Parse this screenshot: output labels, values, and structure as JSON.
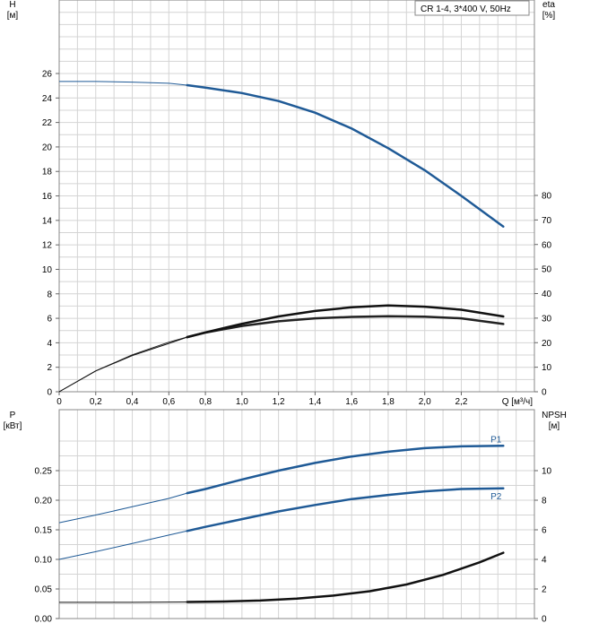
{
  "chart_data": [
    {
      "type": "line",
      "legend_text": "CR 1-4, 3*400 V, 50Hz",
      "left_axis_label": [
        "H",
        "[м]"
      ],
      "right_axis_label": [
        "eta",
        "[%]"
      ],
      "x_axis_label": "Q [м³/ч]",
      "xlim": [
        0,
        2.6
      ],
      "ylim_left": [
        0,
        26
      ],
      "ylim_right": [
        0,
        80
      ],
      "x_ticks": [
        "0",
        "0,2",
        "0,4",
        "0,6",
        "0,8",
        "1,0",
        "1,2",
        "1,4",
        "1,6",
        "1,8",
        "2,0",
        "2,2"
      ],
      "x_tick_values": [
        0,
        0.2,
        0.4,
        0.6,
        0.8,
        1.0,
        1.2,
        1.4,
        1.6,
        1.8,
        2.0,
        2.2
      ],
      "y_left_ticks": [
        "0",
        "2",
        "4",
        "6",
        "8",
        "10",
        "12",
        "14",
        "16",
        "18",
        "20",
        "22",
        "24",
        "26"
      ],
      "y_left_tick_values": [
        0,
        2,
        4,
        6,
        8,
        10,
        12,
        14,
        16,
        18,
        20,
        22,
        24,
        26
      ],
      "y_right_ticks": [
        "0",
        "10",
        "20",
        "30",
        "40",
        "50",
        "60",
        "70",
        "80"
      ],
      "y_right_tick_values": [
        0,
        10,
        20,
        30,
        40,
        50,
        60,
        70,
        80
      ],
      "grid": true,
      "series": [
        {
          "axis": "left",
          "color": "#1f5a96",
          "thin_until": 0.7,
          "x": [
            0,
            0.2,
            0.4,
            0.6,
            0.7,
            0.8,
            1.0,
            1.2,
            1.4,
            1.6,
            1.8,
            2.0,
            2.2,
            2.43
          ],
          "y": [
            25.35,
            25.35,
            25.3,
            25.2,
            25.05,
            24.85,
            24.4,
            23.75,
            22.8,
            21.5,
            19.9,
            18.1,
            16.0,
            13.5
          ]
        },
        {
          "axis": "right",
          "color": "#222222",
          "thin_until": 0.7,
          "x": [
            0,
            0.2,
            0.4,
            0.6,
            0.7,
            0.8,
            1.0,
            1.2,
            1.4,
            1.6,
            1.8,
            2.0,
            2.2,
            2.43
          ],
          "y": [
            0,
            8.5,
            15,
            20.2,
            22.3,
            24.1,
            26.8,
            28.7,
            29.9,
            30.5,
            30.75,
            30.6,
            29.9,
            27.6
          ]
        },
        {
          "axis": "left",
          "color": "#111111",
          "thin_until": 0.7,
          "x": [
            0,
            0.2,
            0.4,
            0.6,
            0.7,
            0.8,
            1.0,
            1.2,
            1.4,
            1.6,
            1.8,
            2.0,
            2.2,
            2.43
          ],
          "y": [
            0,
            1.7,
            2.95,
            3.95,
            4.45,
            4.85,
            5.55,
            6.15,
            6.6,
            6.9,
            7.05,
            6.95,
            6.7,
            6.15
          ]
        }
      ]
    },
    {
      "type": "line",
      "left_axis_label": [
        "P",
        "[кВт]"
      ],
      "right_axis_label": [
        "NPSH",
        "[м]"
      ],
      "xlim": [
        0,
        2.6
      ],
      "ylim_left": [
        0,
        0.3
      ],
      "ylim_right": [
        0,
        12.3
      ],
      "y_left_ticks": [
        "0.00",
        "0.05",
        "0.10",
        "0.15",
        "0.20",
        "0.25"
      ],
      "y_left_tick_values": [
        0,
        0.05,
        0.1,
        0.15,
        0.2,
        0.25
      ],
      "y_right_ticks": [
        "0",
        "2",
        "4",
        "6",
        "8",
        "10"
      ],
      "y_right_tick_values": [
        0,
        2,
        4,
        6,
        8,
        10
      ],
      "grid": true,
      "series": [
        {
          "name": "P1",
          "axis": "left",
          "color": "#1f5a96",
          "thin_until": 0.7,
          "x": [
            0,
            0.2,
            0.4,
            0.6,
            0.7,
            0.8,
            1.0,
            1.2,
            1.4,
            1.6,
            1.8,
            2.0,
            2.2,
            2.43
          ],
          "y": [
            0.162,
            0.175,
            0.189,
            0.203,
            0.212,
            0.219,
            0.235,
            0.25,
            0.263,
            0.274,
            0.282,
            0.288,
            0.291,
            0.292
          ]
        },
        {
          "name": "P2",
          "axis": "left",
          "color": "#1f5a96",
          "thin_until": 0.7,
          "x": [
            0,
            0.2,
            0.4,
            0.6,
            0.7,
            0.8,
            1.0,
            1.2,
            1.4,
            1.6,
            1.8,
            2.0,
            2.2,
            2.43
          ],
          "y": [
            0.1,
            0.113,
            0.127,
            0.141,
            0.148,
            0.155,
            0.168,
            0.181,
            0.192,
            0.202,
            0.209,
            0.215,
            0.219,
            0.22
          ]
        },
        {
          "axis": "right",
          "color": "#111111",
          "thin_until": 0.7,
          "x": [
            0,
            0.4,
            0.7,
            0.9,
            1.1,
            1.3,
            1.5,
            1.7,
            1.9,
            2.1,
            2.3,
            2.43
          ],
          "y": [
            1.1,
            1.1,
            1.12,
            1.15,
            1.22,
            1.35,
            1.55,
            1.85,
            2.3,
            2.95,
            3.8,
            4.45
          ]
        }
      ]
    }
  ]
}
